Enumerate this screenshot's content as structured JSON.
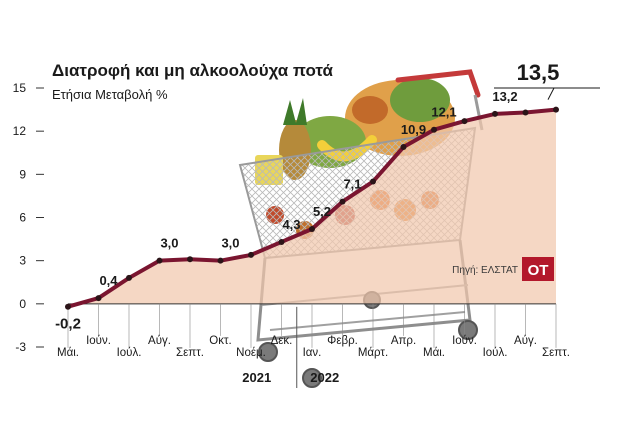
{
  "chart_data": {
    "type": "area",
    "title": "Διατροφή και μη αλκοολούχα ποτά",
    "subtitle": "Ετήσια Μεταβολή %",
    "source": "Πηγή: ΕΛΣΤΑΤ",
    "logo_text": "ΟΤ",
    "ylim": [
      -3,
      15
    ],
    "yticks": [
      -3,
      0,
      3,
      6,
      9,
      12,
      15
    ],
    "grid": false,
    "x": [
      "Μάι.",
      "Ιούν.",
      "Ιούλ.",
      "Αύγ.",
      "Σεπτ.",
      "Οκτ.",
      "Νοέμ.",
      "Δεκ.",
      "Ιαν.",
      "Φεβρ.",
      "Μάρτ.",
      "Απρ.",
      "Μάι.",
      "Ιούν.",
      "Ιούλ.",
      "Αύγ.",
      "Σεπτ."
    ],
    "years": [
      {
        "label": "2021",
        "from": 0,
        "to": 7
      },
      {
        "label": "2022",
        "from": 8,
        "to": 16
      }
    ],
    "series": [
      {
        "values": [
          -0.2,
          0.4,
          1.8,
          3.0,
          3.1,
          3.0,
          3.4,
          4.3,
          5.2,
          7.1,
          8.5,
          10.9,
          12.1,
          12.7,
          13.2,
          13.3,
          13.5
        ]
      }
    ],
    "data_labels": [
      {
        "index": 0,
        "text": "-0,2",
        "emphasis": true
      },
      {
        "index": 1,
        "text": "0,4"
      },
      {
        "index": 3,
        "text": "3,0"
      },
      {
        "index": 5,
        "text": "3,0"
      },
      {
        "index": 7,
        "text": "4,3"
      },
      {
        "index": 8,
        "text": "5,2"
      },
      {
        "index": 9,
        "text": "7,1"
      },
      {
        "index": 11,
        "text": "10,9"
      },
      {
        "index": 12,
        "text": "12,1"
      },
      {
        "index": 14,
        "text": "13,2"
      },
      {
        "index": 16,
        "text": "13,5",
        "callout": true
      }
    ],
    "colors": {
      "line": "#7a1530",
      "area": "#f1c8ad",
      "marker": "#2b1418",
      "text": "#1a1a1a",
      "axis": "#333333",
      "logo_bg": "#b3182b",
      "logo_fg": "#ffffff"
    }
  }
}
